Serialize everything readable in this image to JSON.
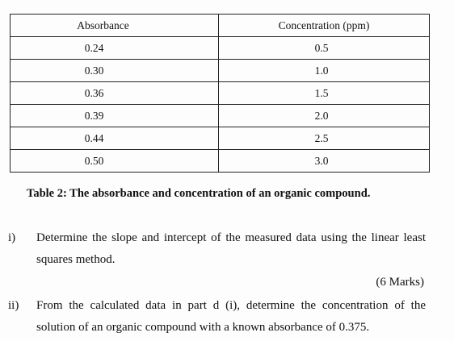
{
  "table": {
    "headers": {
      "absorbance": "Absorbance",
      "concentration": "Concentration (ppm)"
    },
    "rows": [
      {
        "absorbance": "0.24",
        "concentration": "0.5"
      },
      {
        "absorbance": "0.30",
        "concentration": "1.0"
      },
      {
        "absorbance": "0.36",
        "concentration": "1.5"
      },
      {
        "absorbance": "0.39",
        "concentration": "2.0"
      },
      {
        "absorbance": "0.44",
        "concentration": "2.5"
      },
      {
        "absorbance": "0.50",
        "concentration": "3.0"
      }
    ],
    "caption": "Table 2: The absorbance and concentration of an organic compound."
  },
  "questions": [
    {
      "number": "i)",
      "text": "Determine the slope and intercept of the measured data using the linear least squares method.",
      "marks": "(6 Marks)"
    },
    {
      "number": "ii)",
      "text": "From the calculated data in part d (i), determine the concentration of the solution of an organic compound with a known absorbance of 0.375."
    }
  ]
}
